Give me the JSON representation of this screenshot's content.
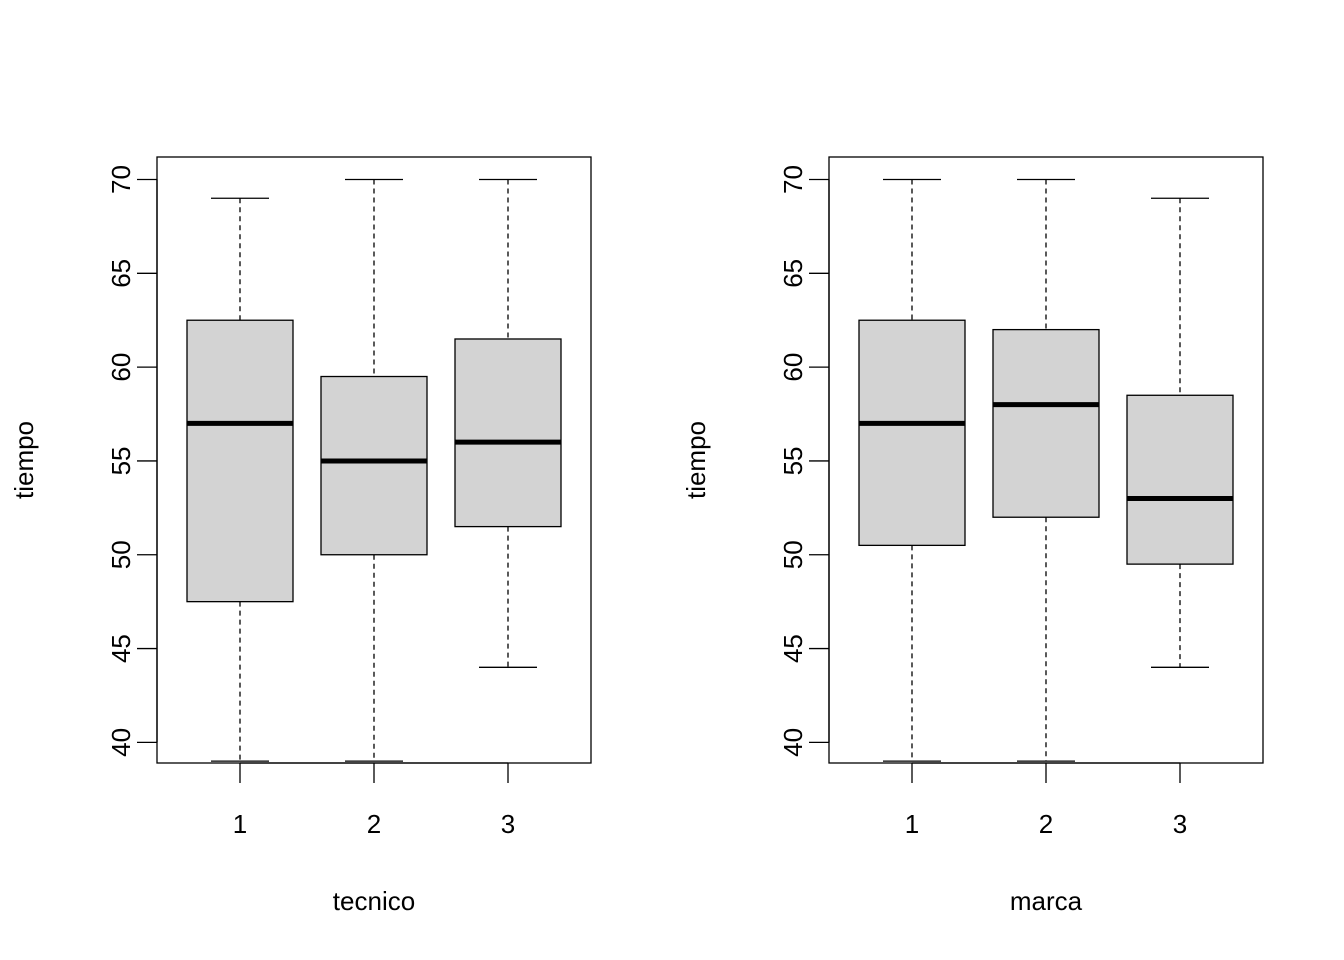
{
  "chart_data": [
    {
      "type": "box",
      "xlabel": "tecnico",
      "ylabel": "tiempo",
      "ylim": [
        38.9,
        71.2
      ],
      "yticks": [
        40,
        45,
        50,
        55,
        60,
        65,
        70
      ],
      "categories": [
        "1",
        "2",
        "3"
      ],
      "boxes": [
        {
          "whisker_low": 39,
          "q1": 47.5,
          "median": 57,
          "q3": 62.5,
          "whisker_high": 69
        },
        {
          "whisker_low": 39,
          "q1": 50,
          "median": 55,
          "q3": 59.5,
          "whisker_high": 70
        },
        {
          "whisker_low": 44,
          "q1": 51.5,
          "median": 56,
          "q3": 61.5,
          "whisker_high": 70
        }
      ],
      "box_fill": "#d3d3d3"
    },
    {
      "type": "box",
      "xlabel": "marca",
      "ylabel": "tiempo",
      "ylim": [
        38.9,
        71.2
      ],
      "yticks": [
        40,
        45,
        50,
        55,
        60,
        65,
        70
      ],
      "categories": [
        "1",
        "2",
        "3"
      ],
      "boxes": [
        {
          "whisker_low": 39,
          "q1": 50.5,
          "median": 57,
          "q3": 62.5,
          "whisker_high": 70
        },
        {
          "whisker_low": 39,
          "q1": 52,
          "median": 58,
          "q3": 62,
          "whisker_high": 70
        },
        {
          "whisker_low": 44,
          "q1": 49.5,
          "median": 53,
          "q3": 58.5,
          "whisker_high": 69
        }
      ],
      "box_fill": "#d3d3d3"
    }
  ]
}
